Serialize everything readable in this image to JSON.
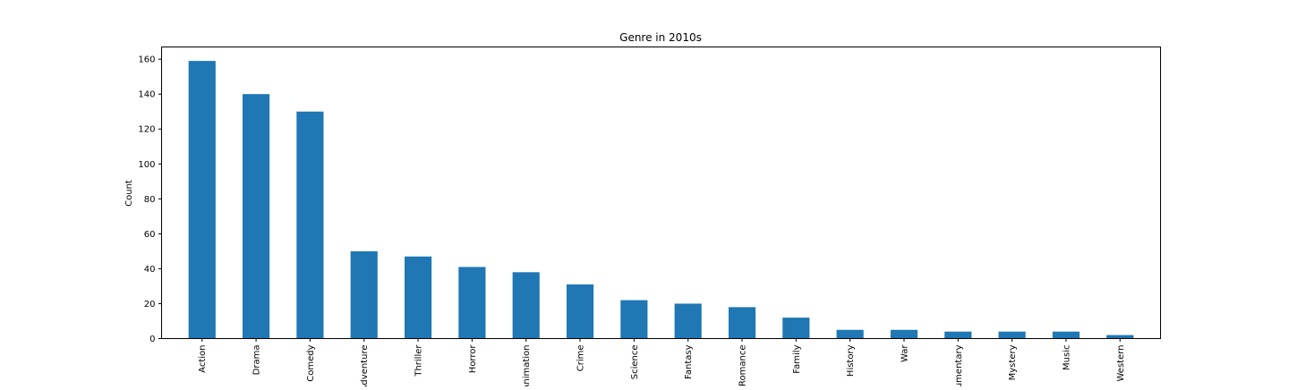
{
  "chart_data": {
    "type": "bar",
    "title": "Genre in 2010s",
    "xlabel": "",
    "ylabel": "Count",
    "categories": [
      "Action",
      "Drama",
      "Comedy",
      "Adventure",
      "Thriller",
      "Horror",
      "Animation",
      "Crime",
      "Science",
      "Fantasy",
      "Romance",
      "Family",
      "History",
      "War",
      "Documentary",
      "Mystery",
      "Music",
      "Western"
    ],
    "values": [
      159,
      140,
      130,
      50,
      47,
      41,
      38,
      31,
      22,
      20,
      18,
      12,
      5,
      5,
      4,
      4,
      4,
      2
    ],
    "ylim": [
      0,
      167
    ],
    "yticks": [
      0,
      20,
      40,
      60,
      80,
      100,
      120,
      140,
      160
    ],
    "grid": false,
    "legend": "none",
    "bar_color": "#1f77b4"
  }
}
